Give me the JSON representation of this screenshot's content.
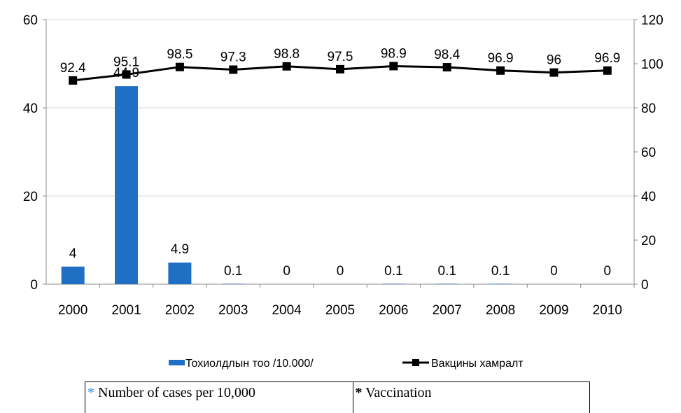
{
  "chart_data": {
    "type": "bar+line",
    "categories": [
      "2000",
      "2001",
      "2002",
      "2003",
      "2004",
      "2005",
      "2006",
      "2007",
      "2008",
      "2009",
      "2010"
    ],
    "series": [
      {
        "name": "Тохиолдлын тоо /10.000/",
        "type": "bar",
        "axis": "left",
        "values": [
          4,
          44.9,
          4.9,
          0.1,
          0,
          0,
          0.1,
          0.1,
          0.1,
          0,
          0
        ],
        "labels": [
          "4",
          "44.9",
          "4.9",
          "0.1",
          "0",
          "0",
          "0.1",
          "0.1",
          "0.1",
          "0",
          "0"
        ],
        "color": "#1f6fc5"
      },
      {
        "name": "Вакцины хамралт",
        "type": "line",
        "axis": "right",
        "values": [
          92.4,
          95.1,
          98.5,
          97.3,
          98.8,
          97.5,
          98.9,
          98.4,
          96.9,
          96,
          96.9
        ],
        "labels": [
          "92.4",
          "95.1",
          "98.5",
          "97.3",
          "98.8",
          "97.5",
          "98.9",
          "98.4",
          "96.9",
          "96",
          "96.9"
        ],
        "color": "#000000"
      }
    ],
    "y_left": {
      "range": [
        0,
        60
      ],
      "ticks": [
        "0",
        "20",
        "40",
        "60"
      ]
    },
    "y_right": {
      "range": [
        0,
        120
      ],
      "ticks": [
        "0",
        "20",
        "40",
        "60",
        "80",
        "100",
        "120"
      ]
    },
    "grid": true,
    "legend_position": "bottom"
  },
  "footnote": {
    "left_star": "*",
    "left_text": " Number of cases per 10,000",
    "right_star": "*",
    "right_text": " Vaccination"
  }
}
